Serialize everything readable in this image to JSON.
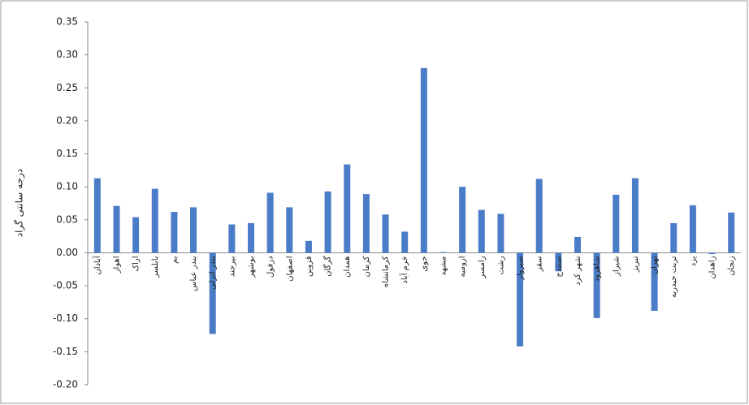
{
  "chart_data": {
    "type": "bar",
    "y_label": "درجه سانتی گراد",
    "categories": [
      "آبادان",
      "اهواز",
      "اراک",
      "بابلسر",
      "بم",
      "بندر عباس",
      "بندر انزلی",
      "بیرجند",
      "بوشهر",
      "دزفول",
      "اصفهان",
      "قزوین",
      "گرگان",
      "همدان",
      "کرمان",
      "کرمانشاه",
      "خرم آباد",
      "خوی",
      "مشهد",
      "ارومیه",
      "رامسر",
      "رشت",
      "سبزوار",
      "سقز",
      "سنندج",
      "شهر کرد",
      "شاهرود",
      "شیراز",
      "تبریز",
      "تهران",
      "تربت حیدریه",
      "یزد",
      "زاهدان",
      "زنجان"
    ],
    "values": [
      0.113,
      0.071,
      0.054,
      0.097,
      0.062,
      0.069,
      -0.123,
      0.043,
      0.045,
      0.091,
      0.069,
      0.018,
      0.093,
      0.134,
      0.089,
      0.058,
      0.032,
      0.28,
      0.001,
      0.1,
      0.065,
      0.059,
      -0.142,
      0.112,
      -0.028,
      0.024,
      -0.099,
      0.088,
      0.113,
      -0.088,
      0.045,
      0.072,
      -0.002,
      0.061
    ],
    "color": "#4a7cc7",
    "ylim": [
      -0.2,
      0.35
    ],
    "yticks": [
      0.35,
      {
        "value": 0.3,
        "label": "0.30"
      },
      0.25,
      {
        "value": 0.2,
        "label": "0.20"
      },
      0.15,
      {
        "value": 0.1,
        "label": "0.10"
      },
      0.05,
      {
        "value": 0,
        "label": "0.00"
      },
      -0.05,
      {
        "value": -0.1,
        "label": "-0.10"
      },
      -0.15,
      {
        "value": -0.2,
        "label": "-0.20"
      }
    ]
  }
}
